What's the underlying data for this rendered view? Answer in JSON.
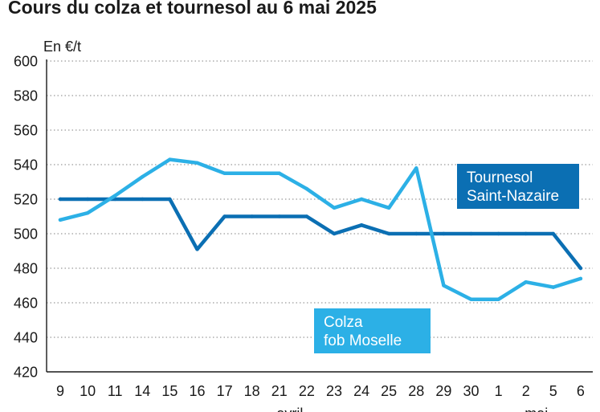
{
  "title": "Cours du colza et tournesol au 6 mai 2025",
  "chart_data": {
    "type": "line",
    "title": "Cours du colza et tournesol au 6 mai 2025",
    "ylabel": "En €/t",
    "ylim": [
      420,
      600
    ],
    "yticks": [
      420,
      440,
      460,
      480,
      500,
      520,
      540,
      560,
      580,
      600
    ],
    "grid": true,
    "categories": [
      "9",
      "10",
      "11",
      "14",
      "15",
      "16",
      "17",
      "18",
      "21",
      "22",
      "23",
      "24",
      "25",
      "28",
      "29",
      "30",
      "1",
      "2",
      "5",
      "6"
    ],
    "month_labels": [
      {
        "label": "avril",
        "after_index": 8
      },
      {
        "label": "mai",
        "after_index": 17
      }
    ],
    "series": [
      {
        "name": "Tournesol Saint-Nazaire",
        "label_lines": [
          "Tournesol",
          "Saint-Nazaire"
        ],
        "color": "#0b6fb3",
        "values": [
          520,
          520,
          520,
          520,
          520,
          491,
          510,
          510,
          510,
          510,
          500,
          505,
          500,
          500,
          500,
          500,
          500,
          500,
          500,
          480
        ]
      },
      {
        "name": "Colza fob Moselle",
        "label_lines": [
          "Colza",
          "fob Moselle"
        ],
        "color": "#2cb0e6",
        "values": [
          508,
          512,
          522,
          533,
          543,
          541,
          535,
          535,
          535,
          526,
          515,
          520,
          515,
          538,
          470,
          462,
          462,
          472,
          469,
          474
        ]
      }
    ]
  }
}
